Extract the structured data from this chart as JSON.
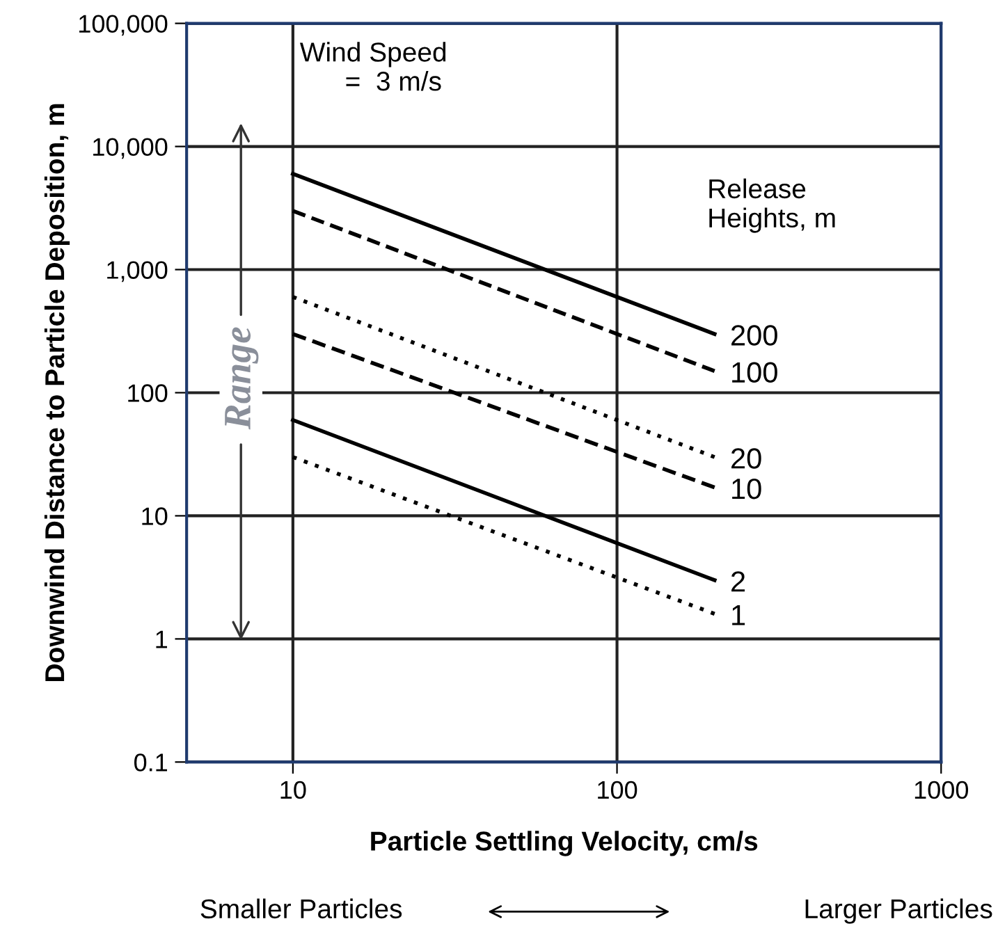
{
  "chart_data": {
    "type": "line",
    "xlabel": "Particle Settling Velocity, cm/s",
    "ylabel": "Downwind Distance to Particle Deposition, m",
    "log": "xy",
    "xlim": [
      4.7,
      1000
    ],
    "xticks": [
      10,
      100,
      1000
    ],
    "ylim": [
      0.1,
      100000
    ],
    "yticks": [
      {
        "value": 0.1,
        "label": "0.1"
      },
      {
        "value": 1,
        "label": "1"
      },
      {
        "value": 10,
        "label": "10"
      },
      {
        "value": 100,
        "label": "100"
      },
      {
        "value": 1000,
        "label": "1,000"
      },
      {
        "value": 10000,
        "label": "10,000"
      },
      {
        "value": 100000,
        "label": "100,000"
      }
    ],
    "grid": true,
    "legend": false,
    "marker": "none",
    "x": [
      10,
      200
    ],
    "series": [
      {
        "name": "200",
        "color": "#000000",
        "line_style": "solid",
        "values": [
          6000,
          300
        ]
      },
      {
        "name": "100",
        "color": "#000000",
        "line_style": "dashed",
        "values": [
          3000,
          150
        ]
      },
      {
        "name": "20",
        "color": "#000000",
        "line_style": "dotted",
        "values": [
          600,
          30
        ]
      },
      {
        "name": "10",
        "color": "#000000",
        "line_style": "dashed",
        "values": [
          300,
          17
        ]
      },
      {
        "name": "2",
        "color": "#000000",
        "line_style": "solid",
        "values": [
          60,
          3
        ]
      },
      {
        "name": "1",
        "color": "#000000",
        "line_style": "dotted",
        "values": [
          30,
          1.6
        ]
      }
    ],
    "annotations": [
      "Wind Speed\n      =  3 m/s",
      "Release\nHeights, m",
      "Range",
      "Smaller Particles",
      "Larger Particles"
    ]
  }
}
